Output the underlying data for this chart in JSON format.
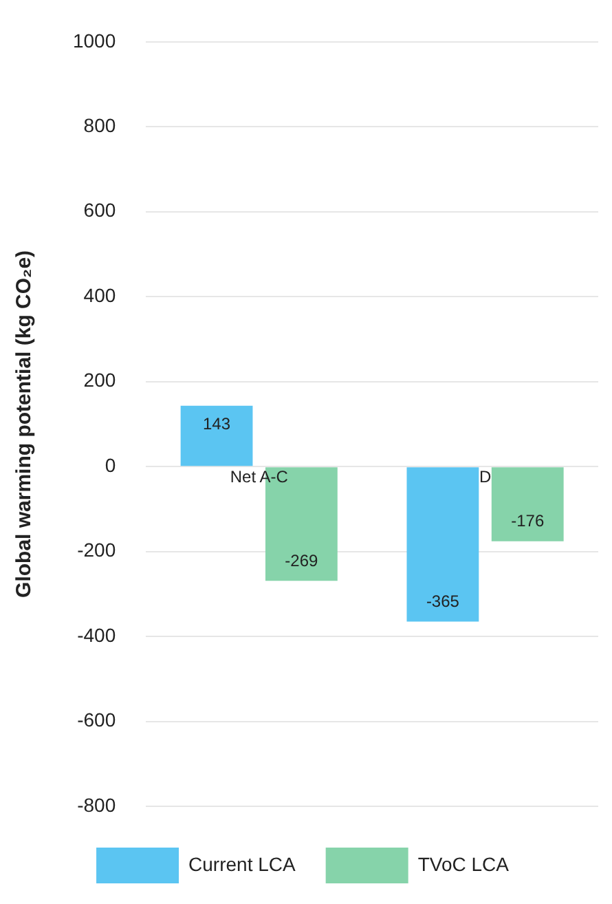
{
  "chart_data": {
    "type": "bar",
    "ylabel": "Global warming potential (kg CO₂e)",
    "categories": [
      "Net A-C",
      "D"
    ],
    "series": [
      {
        "name": "Current LCA",
        "color": "#5bc5f2",
        "values": [
          143,
          -365
        ]
      },
      {
        "name": "TVoC LCA",
        "color": "#86d3aa",
        "values": [
          -269,
          -176
        ]
      }
    ],
    "ylim": [
      -800,
      1000
    ],
    "yticks": [
      -800,
      -600,
      -400,
      -200,
      0,
      200,
      400,
      600,
      800,
      1000
    ],
    "grid": "y",
    "legend": "bottom",
    "data_labels": true
  }
}
